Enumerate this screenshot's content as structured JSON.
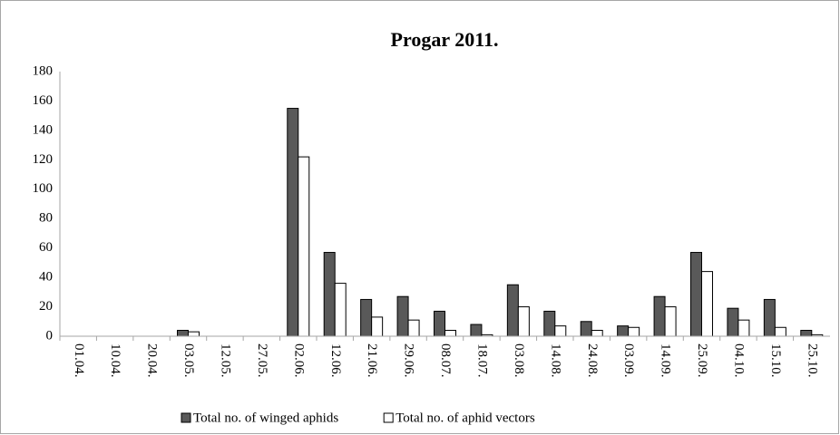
{
  "chart_data": {
    "type": "bar",
    "title": "Progar 2011.",
    "categories": [
      "01.04.",
      "10.04.",
      "20.04.",
      "03.05.",
      "12.05.",
      "27.05.",
      "02.06.",
      "12.06.",
      "21.06.",
      "29.06.",
      "08.07.",
      "18.07.",
      "03.08.",
      "14.08.",
      "24.08.",
      "03.09.",
      "14.09.",
      "25.09.",
      "04.10.",
      "15.10.",
      "25.10."
    ],
    "series": [
      {
        "name": "Total no. of winged aphids",
        "color": "#595959",
        "values": [
          0,
          0,
          0,
          4,
          0,
          0,
          155,
          57,
          25,
          27,
          17,
          8,
          35,
          17,
          10,
          7,
          27,
          57,
          19,
          25,
          4
        ]
      },
      {
        "name": "Total no. of aphid vectors",
        "color": "#ffffff",
        "values": [
          0,
          0,
          0,
          3,
          0,
          0,
          122,
          36,
          13,
          11,
          4,
          1,
          20,
          7,
          4,
          6,
          20,
          44,
          11,
          6,
          1
        ]
      }
    ],
    "ylim": [
      0,
      180
    ],
    "yticks": [
      0,
      20,
      40,
      60,
      80,
      100,
      120,
      140,
      160,
      180
    ],
    "grid": false,
    "legend": "bottom"
  }
}
